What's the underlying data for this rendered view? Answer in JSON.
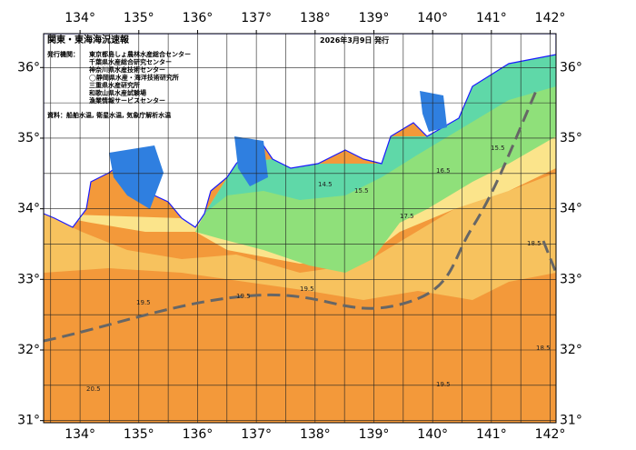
{
  "map": {
    "title": "関東・東海海況速報",
    "date": "2026年3月9日 発行",
    "publisher_heading": "発行機関：",
    "publishers": [
      "東京都島しょ農林水産総合センター",
      "千葉県水産総合研究センター",
      "神奈川県水産技術センター",
      "◯静岡県水産・海洋技術研究所",
      "三重県水産研究所",
      "和歌山県水産試験場",
      "漁業情報サービスセンター"
    ],
    "source": "資料：船舶水温, 衛星水温, 気象庁解析水温",
    "lonlim": [
      133.38,
      142.1
    ],
    "latlim": [
      30.97,
      36.48
    ],
    "lonticks": [
      {
        "value": 134,
        "label": "134°"
      },
      {
        "value": 135,
        "label": "135°"
      },
      {
        "value": 136,
        "label": "136°"
      },
      {
        "value": 137,
        "label": "137°"
      },
      {
        "value": 138,
        "label": "138°"
      },
      {
        "value": 139,
        "label": "139°"
      },
      {
        "value": 140,
        "label": "140°"
      },
      {
        "value": 141,
        "label": "141°"
      },
      {
        "value": 142,
        "label": "142°"
      }
    ],
    "latticks": [
      {
        "value": 31,
        "label": "31°"
      },
      {
        "value": 32,
        "label": "32°"
      },
      {
        "value": 33,
        "label": "33°"
      },
      {
        "value": 34,
        "label": "34°"
      },
      {
        "value": 35,
        "label": "35°"
      },
      {
        "value": 36,
        "label": "36°"
      }
    ],
    "contour_labels": [
      "14.5",
      "15.5",
      "16.5",
      "15.5",
      "18.5",
      "19.5",
      "19.5",
      "19.5",
      "20.5",
      "18.5",
      "17.5",
      "19.5"
    ]
  }
}
